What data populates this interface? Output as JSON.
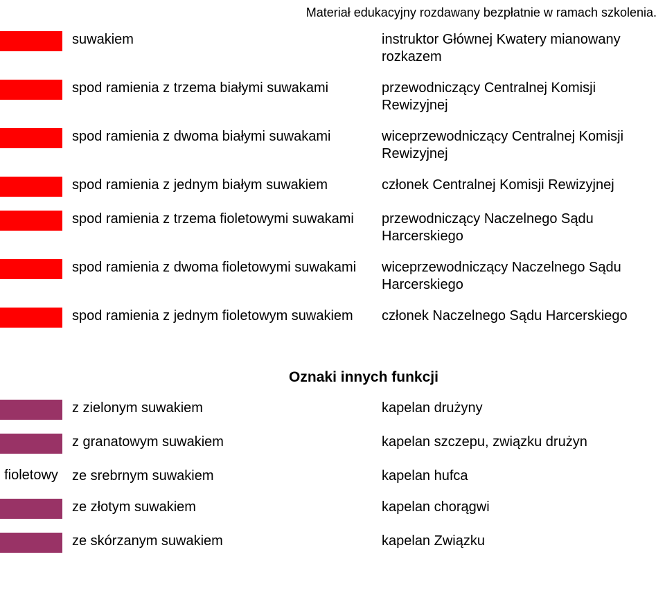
{
  "header": "Materiał edukacyjny rozdawany bezpłatnie w ramach szkolenia.",
  "swatch_colors": {
    "table1": "#ff0000",
    "table2": "#993366"
  },
  "table1": {
    "rows": [
      {
        "left": "suwakiem",
        "right": "instruktor Głównej Kwatery mianowany rozkazem"
      },
      {
        "left": "spod ramienia z trzema białymi suwakami",
        "right": "przewodniczący Centralnej Komisji Rewizyjnej"
      },
      {
        "left": "spod ramienia z dwoma białymi suwakami",
        "right": "wiceprzewodniczący Centralnej Komisji Rewizyjnej"
      },
      {
        "left": "spod ramienia z jednym białym suwakiem",
        "right": "członek Centralnej Komisji Rewizyjnej"
      },
      {
        "left": "spod ramienia z trzema fioletowymi suwakami",
        "right": "przewodniczący Naczelnego Sądu Harcerskiego"
      },
      {
        "left": "spod ramienia z dwoma fioletowymi suwakami",
        "right": "wiceprzewodniczący Naczelnego Sądu Harcerskiego"
      },
      {
        "left": "spod ramienia z jednym fioletowym suwakiem",
        "right": "członek Naczelnego Sądu Harcerskiego"
      }
    ]
  },
  "section2_title": "Oznaki innych funkcji",
  "table2": {
    "side_label": "fioletowy",
    "rows": [
      {
        "left": "z zielonym suwakiem",
        "right": "kapelan drużyny"
      },
      {
        "left": "z granatowym suwakiem",
        "right": "kapelan szczepu, związku drużyn"
      },
      {
        "left": "ze srebrnym suwakiem",
        "right": "kapelan hufca"
      },
      {
        "left": "ze złotym suwakiem",
        "right": "kapelan chorągwi"
      },
      {
        "left": "ze skórzanym suwakiem",
        "right": "kapelan Związku"
      }
    ]
  }
}
